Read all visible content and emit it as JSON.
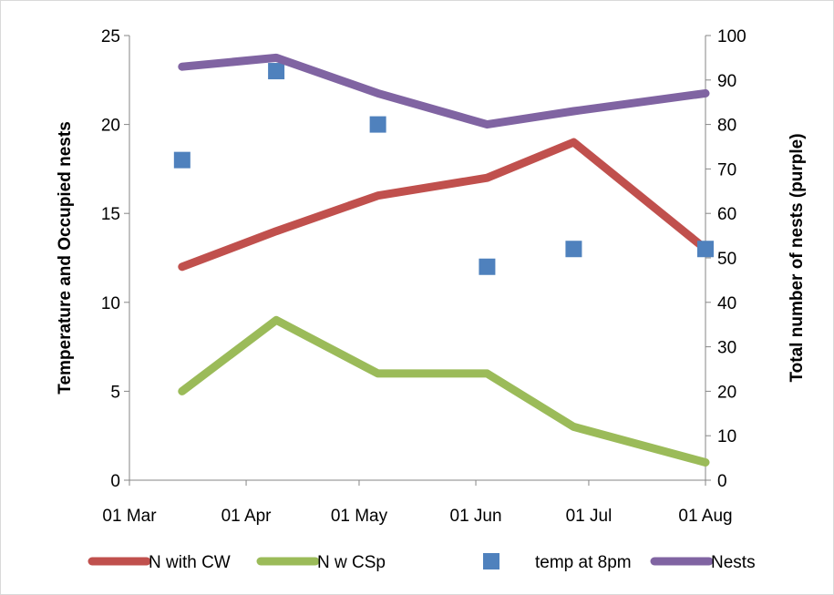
{
  "chart_data": {
    "type": "line",
    "title": "",
    "x": [
      "2011-03-15",
      "2011-04-09",
      "2011-05-06",
      "2011-06-04",
      "2011-06-27",
      "2011-08-01"
    ],
    "x_tick_labels": [
      "01 Mar",
      "01 Apr",
      "01 May",
      "01 Jun",
      "01 Jul",
      "01 Aug"
    ],
    "xlim": [
      "2011-03-01",
      "2011-08-01"
    ],
    "ylabel": "Temperature and Occupied nests",
    "ylim": [
      0,
      25
    ],
    "y_ticks": [
      "0",
      "5",
      "10",
      "15",
      "20",
      "25"
    ],
    "y2label": "Total number of nests (purple)",
    "y2lim": [
      0,
      100
    ],
    "y2_ticks": [
      "0",
      "10",
      "20",
      "30",
      "40",
      "50",
      "60",
      "70",
      "80",
      "90",
      "100"
    ],
    "grid": false,
    "legend_position": "bottom",
    "series": [
      {
        "name": "N with CW",
        "style": "line",
        "axis": "left",
        "color": "#c0504d",
        "values": [
          12,
          14,
          16,
          17,
          19,
          13
        ]
      },
      {
        "name": "N w CSp",
        "style": "line",
        "axis": "left",
        "color": "#9bbb59",
        "values": [
          5,
          9,
          6,
          6,
          3,
          1
        ]
      },
      {
        "name": "temp at 8pm",
        "style": "marker",
        "axis": "left",
        "color": "#4f81bd",
        "values": [
          18,
          23,
          20,
          12,
          13,
          13
        ]
      },
      {
        "name": "Nests",
        "style": "line",
        "axis": "right",
        "color": "#8064a2",
        "values": [
          93,
          95,
          87,
          80,
          83,
          87
        ]
      }
    ]
  }
}
